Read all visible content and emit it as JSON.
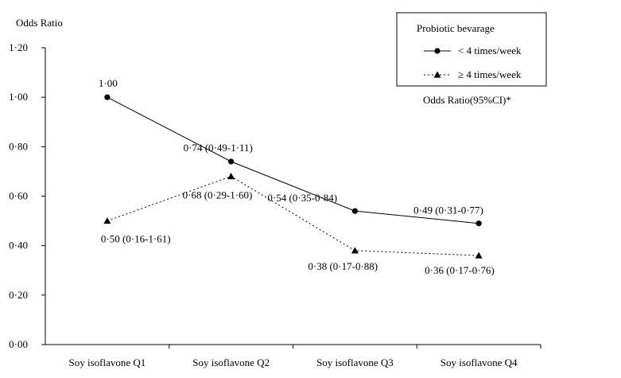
{
  "chart_data": {
    "type": "line",
    "ylabel": "Odds Ratio",
    "xlabel": "",
    "ylim": [
      0,
      1.2
    ],
    "yticks": [
      0,
      0.2,
      0.4,
      0.6,
      0.8,
      1.0,
      1.2
    ],
    "ytick_labels": [
      "0·00",
      "0·20",
      "0·40",
      "0·60",
      "0·80",
      "1·00",
      "1·20"
    ],
    "categories": [
      "Soy isoflavone Q1",
      "Soy isoflavone Q2",
      "Soy isoflavone Q3",
      "Soy isoflavone Q4"
    ],
    "legend": {
      "title": "Probiotic bevarage",
      "position": "top-right"
    },
    "note": "Odds Ratio(95%CI)*",
    "series": [
      {
        "name": "< 4 times/week",
        "marker": "circle",
        "line": "solid",
        "values": [
          1.0,
          0.74,
          0.54,
          0.49
        ],
        "labels": [
          "1·00",
          "0·74 (0·49-1·11)",
          "0·54 (0·35-0·84)",
          "0·49 (0·31-0·77)"
        ]
      },
      {
        "name": "≥ 4 times/week",
        "marker": "triangle",
        "line": "dotted",
        "values": [
          0.5,
          0.68,
          0.38,
          0.36
        ],
        "labels": [
          "0·50 (0·16-1·61)",
          "0·68 (0·29-1·60)",
          "0·38 (0·17-0·88)",
          "0·36 (0·17-0·76)"
        ]
      }
    ],
    "grid": false,
    "colors": {
      "line": "#000000",
      "axis": "#000000",
      "background": "#ffffff"
    }
  }
}
